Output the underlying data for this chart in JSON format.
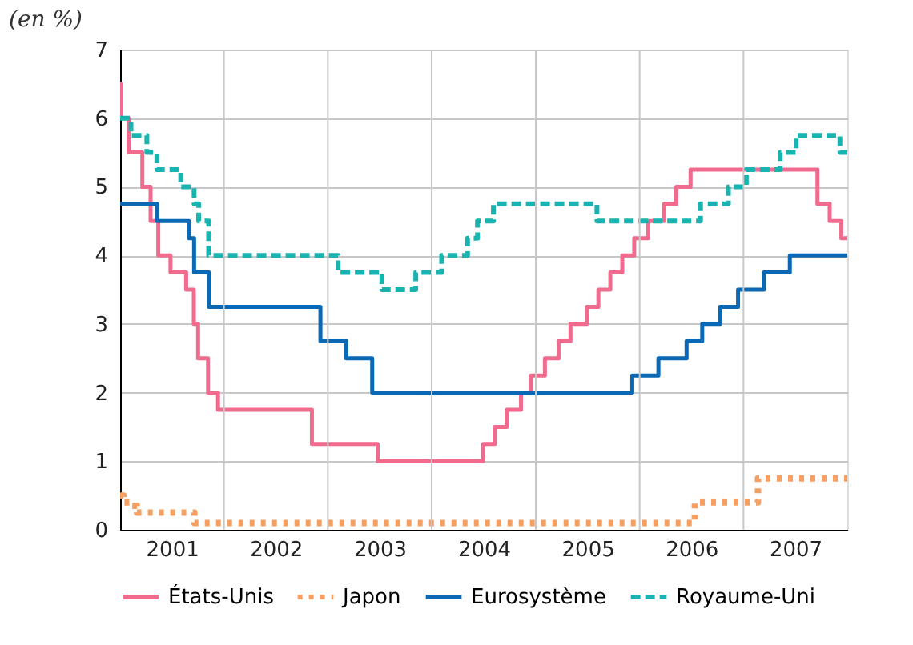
{
  "chart_data": {
    "type": "step",
    "ylabel": "(en %)",
    "xlim": [
      "2001-01-01",
      "2008-01-01"
    ],
    "xticks": [
      {
        "value": "2001-07-02",
        "label": "2001"
      },
      {
        "value": "2002-07-02",
        "label": "2002"
      },
      {
        "value": "2003-07-02",
        "label": "2003"
      },
      {
        "value": "2004-07-02",
        "label": "2004"
      },
      {
        "value": "2005-07-02",
        "label": "2005"
      },
      {
        "value": "2006-07-02",
        "label": "2006"
      },
      {
        "value": "2007-07-02",
        "label": "2007"
      },
      {
        "value": "2002-01-01",
        "label": null
      },
      {
        "value": "2003-01-01",
        "label": null
      },
      {
        "value": "2004-01-01",
        "label": null
      },
      {
        "value": "2005-01-01",
        "label": null
      },
      {
        "value": "2006-01-01",
        "label": null
      },
      {
        "value": "2007-01-01",
        "label": null
      }
    ],
    "ylim": [
      0,
      7
    ],
    "yticks": [
      0,
      1,
      2,
      3,
      4,
      5,
      6,
      7
    ],
    "grid": true,
    "legend": "bottom",
    "series": [
      {
        "name": "États-Unis",
        "color": "#f06b8e",
        "line_style": "solid",
        "x": [
          "2001-01-01",
          "2001-01-03",
          "2001-01-31",
          "2001-03-20",
          "2001-04-18",
          "2001-05-15",
          "2001-06-27",
          "2001-08-21",
          "2001-09-17",
          "2001-10-02",
          "2001-11-06",
          "2001-12-11",
          "2002-11-06",
          "2003-06-25",
          "2004-06-30",
          "2004-08-10",
          "2004-09-21",
          "2004-11-10",
          "2004-12-14",
          "2005-02-02",
          "2005-03-22",
          "2005-05-03",
          "2005-06-30",
          "2005-08-09",
          "2005-09-20",
          "2005-11-01",
          "2005-12-13",
          "2006-01-31",
          "2006-03-28",
          "2006-05-10",
          "2006-06-29",
          "2007-09-18",
          "2007-10-31",
          "2007-12-11",
          "2008-01-01"
        ],
        "values": [
          6.5,
          6.0,
          5.5,
          5.0,
          4.5,
          4.0,
          3.75,
          3.5,
          3.0,
          2.5,
          2.0,
          1.75,
          1.25,
          1.0,
          1.25,
          1.5,
          1.75,
          2.0,
          2.25,
          2.5,
          2.75,
          3.0,
          3.25,
          3.5,
          3.75,
          4.0,
          4.25,
          4.5,
          4.75,
          5.0,
          5.25,
          4.75,
          4.5,
          4.25,
          4.25
        ]
      },
      {
        "name": "Japon",
        "color": "#f5a062",
        "line_style": "dotted",
        "x": [
          "2001-01-01",
          "2001-01-13",
          "2001-02-09",
          "2001-03-01",
          "2001-09-19",
          "2006-07-14",
          "2007-02-21",
          "2008-01-01"
        ],
        "values": [
          0.5,
          0.4,
          0.35,
          0.25,
          0.1,
          0.4,
          0.75,
          0.75
        ]
      },
      {
        "name": "Eurosystème",
        "color": "#0a68b4",
        "line_style": "solid",
        "x": [
          "2001-01-01",
          "2001-05-11",
          "2001-08-31",
          "2001-09-18",
          "2001-11-09",
          "2002-12-06",
          "2003-03-07",
          "2003-06-06",
          "2005-12-06",
          "2006-03-08",
          "2006-06-15",
          "2006-08-09",
          "2006-10-11",
          "2006-12-13",
          "2007-03-14",
          "2007-06-13",
          "2008-01-01"
        ],
        "values": [
          4.75,
          4.5,
          4.25,
          3.75,
          3.25,
          2.75,
          2.5,
          2.0,
          2.25,
          2.5,
          2.75,
          3.0,
          3.25,
          3.5,
          3.75,
          4.0,
          4.0
        ]
      },
      {
        "name": "Royaume-Uni",
        "color": "#1ab4b0",
        "line_style": "dashed",
        "x": [
          "2001-01-01",
          "2001-02-08",
          "2001-04-05",
          "2001-05-10",
          "2001-08-02",
          "2001-09-18",
          "2001-10-04",
          "2001-11-08",
          "2003-02-06",
          "2003-07-10",
          "2003-11-06",
          "2004-02-05",
          "2004-05-06",
          "2004-06-10",
          "2004-08-05",
          "2005-08-04",
          "2006-08-03",
          "2006-11-09",
          "2007-01-11",
          "2007-05-10",
          "2007-07-05",
          "2007-12-06",
          "2008-01-01"
        ],
        "values": [
          6.0,
          5.75,
          5.5,
          5.25,
          5.0,
          4.75,
          4.5,
          4.0,
          3.75,
          3.5,
          3.75,
          4.0,
          4.25,
          4.5,
          4.75,
          4.5,
          4.75,
          5.0,
          5.25,
          5.5,
          5.75,
          5.5,
          5.5
        ]
      }
    ]
  }
}
